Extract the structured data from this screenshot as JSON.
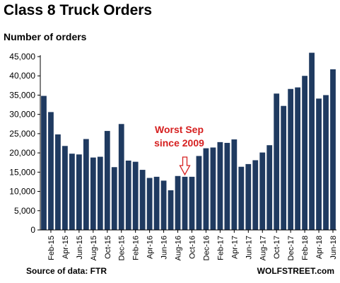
{
  "chart_data": {
    "type": "bar",
    "title": "Class 8 Truck Orders",
    "ylabel": "Number of orders",
    "xlabel": "",
    "ylim": [
      0,
      45000
    ],
    "yticks": [
      0,
      5000,
      10000,
      15000,
      20000,
      25000,
      30000,
      35000,
      40000,
      45000
    ],
    "ytick_labels": [
      "0",
      "5,000",
      "10,000",
      "15,000",
      "20,000",
      "25,000",
      "30,000",
      "35,000",
      "40,000",
      "45,000"
    ],
    "grid": false,
    "bar_color": "#1f3a60",
    "categories": [
      "Jan-15",
      "Feb-15",
      "Mar-15",
      "Apr-15",
      "May-15",
      "Jun-15",
      "Jul-15",
      "Aug-15",
      "Sep-15",
      "Oct-15",
      "Nov-15",
      "Dec-15",
      "Jan-16",
      "Feb-16",
      "Mar-16",
      "Apr-16",
      "May-16",
      "Jun-16",
      "Jul-16",
      "Aug-16",
      "Sep-16",
      "Oct-16",
      "Nov-16",
      "Dec-16",
      "Jan-17",
      "Feb-17",
      "Mar-17",
      "Apr-17",
      "May-17",
      "Jun-17",
      "Jul-17",
      "Aug-17",
      "Sep-17",
      "Oct-17",
      "Nov-17",
      "Dec-17",
      "Jan-18",
      "Feb-18",
      "Mar-18",
      "Apr-18",
      "May-18",
      "Jun-18"
    ],
    "tick_labels": [
      "Feb-15",
      "Apr-15",
      "Jun-15",
      "Aug-15",
      "Oct-15",
      "Dec-15",
      "Feb-16",
      "Apr-16",
      "Jun-16",
      "Aug-16",
      "Oct-16",
      "Dec-16",
      "Feb-17",
      "Apr-17",
      "Jun-17",
      "Aug-17",
      "Oct-17",
      "Dec-17",
      "Feb-18",
      "Apr-18",
      "Jun-18"
    ],
    "values": [
      34800,
      30600,
      24800,
      21800,
      19800,
      19600,
      23600,
      18800,
      19000,
      25700,
      16300,
      27500,
      18000,
      17700,
      15600,
      13500,
      13800,
      12800,
      10300,
      14000,
      13800,
      13800,
      19200,
      21200,
      21400,
      22800,
      22600,
      23500,
      16400,
      17100,
      18100,
      20100,
      22000,
      35400,
      32200,
      36600,
      37000,
      40000,
      46000,
      34100,
      35000,
      41700
    ],
    "annotation": {
      "line1": "Worst Sep",
      "line2": "since 2009",
      "target_category": "Sep-16",
      "color": "#d62020"
    }
  },
  "source_text": "Source of data: FTR",
  "brand_text": "WOLFSTREET.com"
}
